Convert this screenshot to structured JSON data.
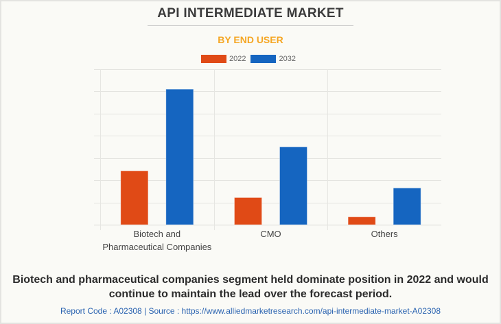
{
  "header": {
    "title": "API INTERMEDIATE MARKET",
    "subtitle": "BY END USER"
  },
  "colors": {
    "series_2022": "#e04a16",
    "series_2032": "#1565c0",
    "title": "#3b3b3b",
    "subtitle": "#f5a623",
    "source_link": "#2a63b0",
    "gridline": "#e4e4e0"
  },
  "chart_data": {
    "type": "bar",
    "title": "API INTERMEDIATE MARKET",
    "subtitle": "BY END USER",
    "categories": [
      [
        "Biotech and",
        "Pharmaceutical Companies"
      ],
      [
        "CMO"
      ],
      [
        "Others"
      ]
    ],
    "series": [
      {
        "name": "2022",
        "values": [
          2.42,
          1.22,
          0.35
        ]
      },
      {
        "name": "2032",
        "values": [
          6.1,
          3.5,
          1.65
        ]
      }
    ],
    "xlabel": "",
    "ylabel": "",
    "ylim": [
      0,
      7
    ],
    "yticks_labeled": false,
    "units_note": "relative (gridline intervals), no axis values shown",
    "grid": true,
    "legend_position": "top-center"
  },
  "legend": [
    {
      "label": "2022"
    },
    {
      "label": "2032"
    }
  ],
  "footer": {
    "caption": "Biotech and pharmaceutical companies segment held dominate position in 2022 and would continue to maintain the lead over the forecast period.",
    "source": "Report Code : A02308  |  Source : https://www.alliedmarketresearch.com/api-intermediate-market-A02308"
  }
}
